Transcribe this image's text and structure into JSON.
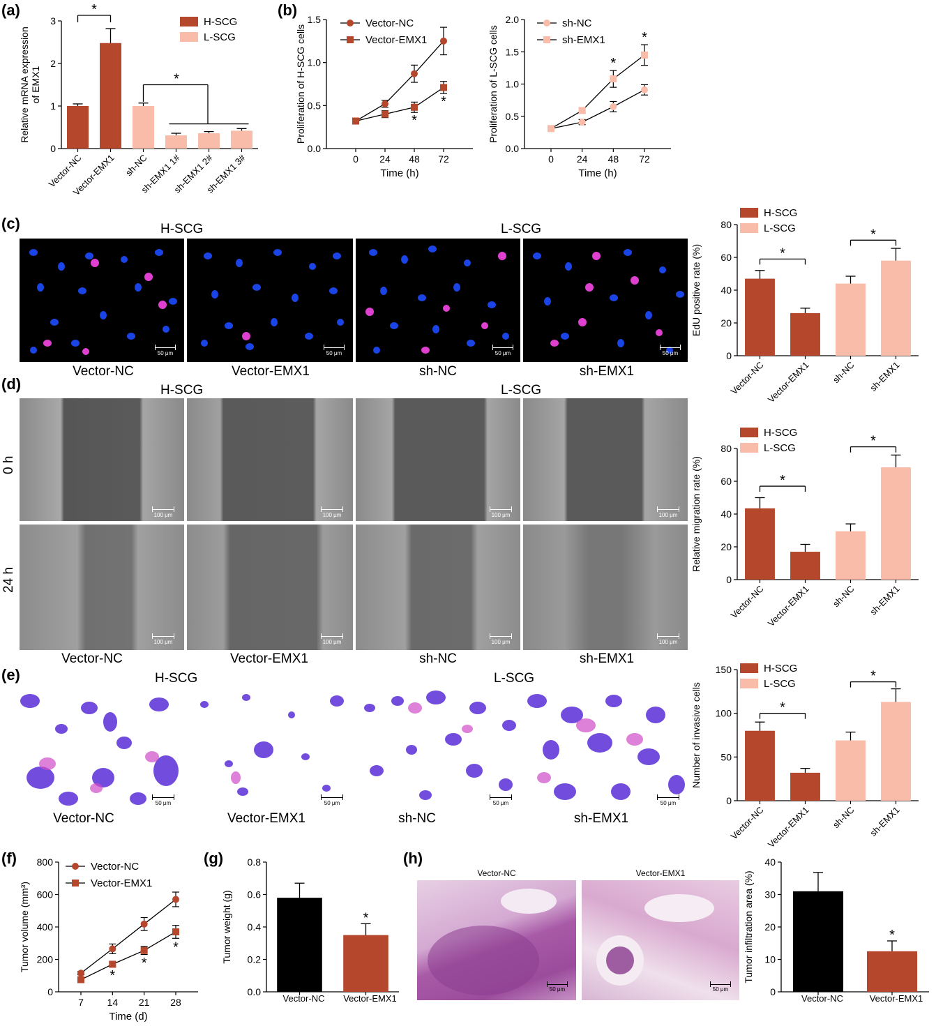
{
  "colors": {
    "h_scg": "#b5472c",
    "l_scg": "#f9bca8",
    "black": "#000000"
  },
  "panels": {
    "a": "(a)",
    "b": "(b)",
    "c": "(c)",
    "d": "(d)",
    "e": "(e)",
    "f": "(f)",
    "g": "(g)",
    "h": "(h)"
  },
  "images": {
    "group_h": "H-SCG",
    "group_l": "L-SCG",
    "cols": [
      "Vector-NC",
      "Vector-EMX1",
      "sh-NC",
      "sh-EMX1"
    ],
    "rows_d": [
      "0 h",
      "24 h"
    ],
    "scale_c": "50 μm",
    "scale_d": "100 μm",
    "scale_e": "50 μm",
    "h_titles": [
      "Vector-NC",
      "Vector-EMX1"
    ],
    "scale_h": "50 μm"
  },
  "chart_data": [
    {
      "id": "a",
      "type": "bar",
      "categories": [
        "Vector-NC",
        "Vector-EMX1",
        "sh-NC",
        "sh-EMX1 1#",
        "sh-EMX1 2#",
        "sh-EMX1 3#"
      ],
      "values": [
        1.0,
        2.48,
        1.0,
        0.31,
        0.36,
        0.42
      ],
      "errors": [
        0.05,
        0.34,
        0.07,
        0.05,
        0.04,
        0.05
      ],
      "color_keys": [
        "h",
        "h",
        "l",
        "l",
        "l",
        "l"
      ],
      "ylabel": "Relative mRNA expression of EMX1",
      "ylim": [
        0,
        3
      ],
      "yticks": [
        "0",
        "1",
        "2",
        "3"
      ],
      "legend": [
        "H-SCG",
        "L-SCG"
      ],
      "sig": "*"
    },
    {
      "id": "b1",
      "type": "line",
      "x": [
        0,
        24,
        48,
        72
      ],
      "xticks": [
        "0",
        "24",
        "48",
        "72"
      ],
      "series": [
        {
          "name": "Vector-NC",
          "values": [
            0.32,
            0.52,
            0.87,
            1.25
          ],
          "errors": [
            0.03,
            0.04,
            0.1,
            0.16
          ]
        },
        {
          "name": "Vector-EMX1",
          "values": [
            0.32,
            0.4,
            0.48,
            0.71
          ],
          "errors": [
            0.03,
            0.04,
            0.06,
            0.07
          ]
        }
      ],
      "xlabel": "Time (h)",
      "ylabel": "Proliferation of H-SCG cells",
      "ylim": [
        0,
        1.5
      ],
      "yticks": [
        "0.0",
        "0.5",
        "1.0",
        "1.5"
      ],
      "sig": "*"
    },
    {
      "id": "b2",
      "type": "line",
      "x": [
        0,
        24,
        48,
        72
      ],
      "xticks": [
        "0",
        "24",
        "48",
        "72"
      ],
      "series": [
        {
          "name": "sh-NC",
          "values": [
            0.31,
            0.41,
            0.65,
            0.91
          ],
          "errors": [
            0.03,
            0.04,
            0.08,
            0.08
          ]
        },
        {
          "name": "sh-EMX1",
          "values": [
            0.31,
            0.59,
            1.08,
            1.45
          ],
          "errors": [
            0.03,
            0.04,
            0.13,
            0.16
          ]
        }
      ],
      "xlabel": "Time (h)",
      "ylabel": "Proliferation of L-SCG cells",
      "ylim": [
        0,
        2.0
      ],
      "yticks": [
        "0.0",
        "0.5",
        "1.0",
        "1.5",
        "2.0"
      ],
      "sig": "*"
    },
    {
      "id": "c",
      "type": "bar",
      "categories": [
        "Vector-NC",
        "Vector-EMX1",
        "sh-NC",
        "sh-EMX1"
      ],
      "values": [
        47,
        26,
        44,
        58
      ],
      "errors": [
        5,
        3,
        4.5,
        7.5
      ],
      "color_keys": [
        "h",
        "h",
        "l",
        "l"
      ],
      "ylabel": "EdU positive rate (%)",
      "ylim": [
        0,
        80
      ],
      "yticks": [
        "0",
        "20",
        "40",
        "60",
        "80"
      ],
      "legend": [
        "H-SCG",
        "L-SCG"
      ],
      "sig": "*"
    },
    {
      "id": "d",
      "type": "bar",
      "categories": [
        "Vector-NC",
        "Vector-EMX1",
        "sh-NC",
        "sh-EMX1"
      ],
      "values": [
        43.5,
        17,
        29.5,
        68.5
      ],
      "errors": [
        6.5,
        4.5,
        4.5,
        7.5
      ],
      "color_keys": [
        "h",
        "h",
        "l",
        "l"
      ],
      "ylabel": "Relative migration rate (%)",
      "ylim": [
        0,
        80
      ],
      "yticks": [
        "0",
        "20",
        "40",
        "60",
        "80"
      ],
      "legend": [
        "H-SCG",
        "L-SCG"
      ],
      "sig": "*"
    },
    {
      "id": "e",
      "type": "bar",
      "categories": [
        "Vector-NC",
        "Vector-EMX1",
        "sh-NC",
        "sh-EMX1"
      ],
      "values": [
        80,
        32,
        69,
        113
      ],
      "errors": [
        10,
        5,
        9.5,
        15
      ],
      "color_keys": [
        "h",
        "h",
        "l",
        "l"
      ],
      "ylabel": "Number of invasive cells",
      "ylim": [
        0,
        150
      ],
      "yticks": [
        "0",
        "50",
        "100",
        "150"
      ],
      "legend": [
        "H-SCG",
        "L-SCG"
      ],
      "sig": "*"
    },
    {
      "id": "f",
      "type": "line",
      "x": [
        7,
        14,
        21,
        28
      ],
      "xticks": [
        "7",
        "14",
        "21",
        "28"
      ],
      "series": [
        {
          "name": "Vector-NC",
          "values": [
            115,
            265,
            418,
            570
          ],
          "errors": [
            10,
            30,
            40,
            45
          ]
        },
        {
          "name": "Vector-EMX1",
          "values": [
            75,
            170,
            255,
            370
          ],
          "errors": [
            8,
            15,
            25,
            40
          ]
        }
      ],
      "xlabel": "Time (d)",
      "ylabel": "Tumor volume (mm³)",
      "ylim": [
        0,
        800
      ],
      "yticks": [
        "0",
        "200",
        "400",
        "600",
        "800"
      ],
      "sig": "*"
    },
    {
      "id": "g",
      "type": "bar",
      "categories": [
        "Vector-NC",
        "Vector-EMX1"
      ],
      "values": [
        0.58,
        0.35
      ],
      "errors": [
        0.09,
        0.07
      ],
      "color_keys": [
        "k",
        "h"
      ],
      "ylabel": "Tumor weight (g)",
      "ylim": [
        0,
        0.8
      ],
      "yticks": [
        "0.0",
        "0.2",
        "0.4",
        "0.6",
        "0.8"
      ],
      "sig": "*"
    },
    {
      "id": "h",
      "type": "bar",
      "categories": [
        "Vector-NC",
        "Vector-EMX1"
      ],
      "values": [
        31,
        12.5
      ],
      "errors": [
        5.8,
        3.2
      ],
      "color_keys": [
        "k",
        "h"
      ],
      "ylabel": "Tumor infiltration area (%)",
      "ylim": [
        0,
        40
      ],
      "yticks": [
        "0",
        "10",
        "20",
        "30",
        "40"
      ],
      "sig": "*"
    }
  ]
}
